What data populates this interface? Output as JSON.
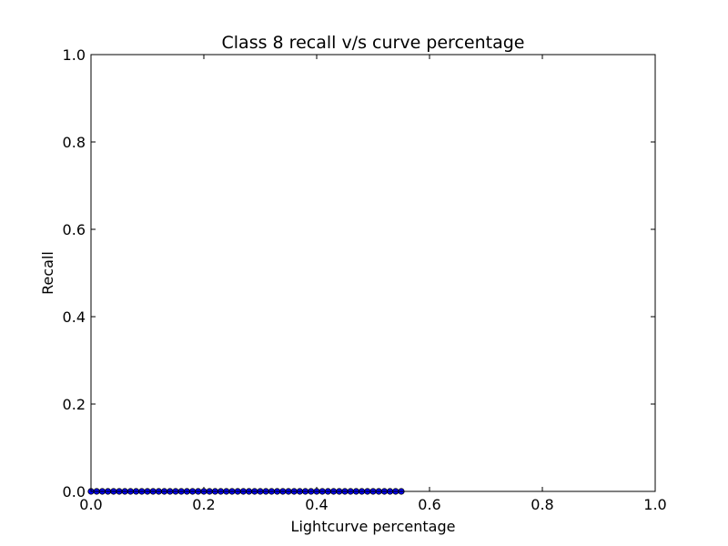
{
  "chart_data": {
    "type": "line",
    "title": "Class 8 recall v/s curve percentage",
    "xlabel": "Lightcurve percentage",
    "ylabel": "Recall",
    "xlim": [
      0.0,
      1.0
    ],
    "ylim": [
      0.0,
      1.0
    ],
    "x_ticks": [
      0.0,
      0.2,
      0.4,
      0.6,
      0.8,
      1.0
    ],
    "y_ticks": [
      0.0,
      0.2,
      0.4,
      0.6,
      0.8,
      1.0
    ],
    "x_tick_labels": [
      "0.0",
      "0.2",
      "0.4",
      "0.6",
      "0.8",
      "1.0"
    ],
    "y_tick_labels": [
      "0.0",
      "0.2",
      "0.4",
      "0.6",
      "0.8",
      "1.0"
    ],
    "grid": false,
    "legend": "none",
    "series": [
      {
        "color": "#0000ff",
        "marker": "circle",
        "x": [
          0.0,
          0.01,
          0.02,
          0.03,
          0.04,
          0.05,
          0.06,
          0.07,
          0.08,
          0.09,
          0.1,
          0.11,
          0.12,
          0.13,
          0.14,
          0.15,
          0.16,
          0.17,
          0.18,
          0.19,
          0.2,
          0.21,
          0.22,
          0.23,
          0.24,
          0.25,
          0.26,
          0.27,
          0.28,
          0.29,
          0.3,
          0.31,
          0.32,
          0.33,
          0.34,
          0.35,
          0.36,
          0.37,
          0.38,
          0.39,
          0.4,
          0.41,
          0.42,
          0.43,
          0.44,
          0.45,
          0.46,
          0.47,
          0.48,
          0.49,
          0.5,
          0.51,
          0.52,
          0.53,
          0.54,
          0.55
        ],
        "y": [
          0,
          0,
          0,
          0,
          0,
          0,
          0,
          0,
          0,
          0,
          0,
          0,
          0,
          0,
          0,
          0,
          0,
          0,
          0,
          0,
          0,
          0,
          0,
          0,
          0,
          0,
          0,
          0,
          0,
          0,
          0,
          0,
          0,
          0,
          0,
          0,
          0,
          0,
          0,
          0,
          0,
          0,
          0,
          0,
          0,
          0,
          0,
          0,
          0,
          0,
          0,
          0,
          0,
          0,
          0,
          0
        ]
      }
    ]
  }
}
